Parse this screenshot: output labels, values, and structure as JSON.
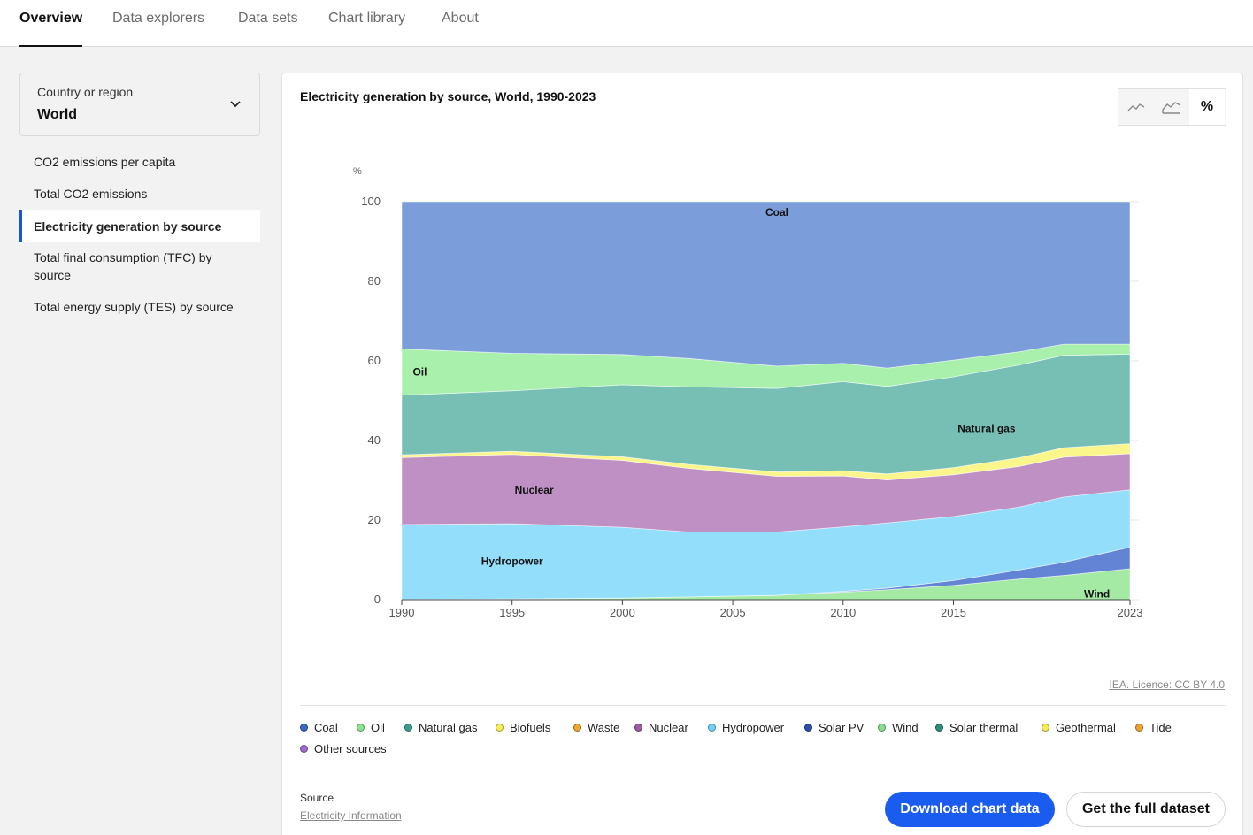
{
  "nav": {
    "tabs": [
      "Overview",
      "Data explorers",
      "Data sets",
      "Chart library",
      "About"
    ],
    "active": "Overview"
  },
  "selector": {
    "label": "Country or region",
    "value": "World"
  },
  "sidebar": {
    "items": [
      "CO2 emissions per capita",
      "Total CO2 emissions",
      "Electricity generation by source",
      "Total final consumption (TFC) by source",
      "Total energy supply (TES) by source"
    ],
    "active": "Electricity generation by source"
  },
  "chart": {
    "title": "Electricity generation by source, World, 1990-2023",
    "toggle_percent_label": "%",
    "licence": "IEA. Licence: CC BY 4.0",
    "source_label": "Source",
    "source_link": "Electricity Information",
    "download_label": "Download chart data",
    "dataset_label": "Get the full dataset",
    "legend": [
      {
        "name": "Coal",
        "color": "#3d68c2"
      },
      {
        "name": "Oil",
        "color": "#8ae38e"
      },
      {
        "name": "Natural gas",
        "color": "#3a9e8f"
      },
      {
        "name": "Biofuels",
        "color": "#f5ee5b"
      },
      {
        "name": "Waste",
        "color": "#f0a531"
      },
      {
        "name": "Nuclear",
        "color": "#a15aa5"
      },
      {
        "name": "Hydropower",
        "color": "#6dd4f7"
      },
      {
        "name": "Solar PV",
        "color": "#2d4eb0"
      },
      {
        "name": "Wind",
        "color": "#85e08a"
      },
      {
        "name": "Solar thermal",
        "color": "#2f8c7a"
      },
      {
        "name": "Geothermal",
        "color": "#f2ec55"
      },
      {
        "name": "Tide",
        "color": "#eba033"
      },
      {
        "name": "Other sources",
        "color": "#9b6fd1"
      }
    ]
  },
  "chart_data": {
    "type": "area",
    "ylabel": "%",
    "ylim": [
      0,
      100
    ],
    "yticks": [
      0,
      20,
      40,
      60,
      80,
      100
    ],
    "xticks": [
      1990,
      1995,
      2000,
      2005,
      2010,
      2015,
      2023
    ],
    "x": [
      1990,
      1995,
      2000,
      2003,
      2007,
      2010,
      2012,
      2015,
      2018,
      2020,
      2023
    ],
    "series": [
      {
        "name": "Wind",
        "values": [
          0.1,
          0.2,
          0.4,
          0.7,
          1.1,
          1.9,
          2.5,
          3.6,
          5.2,
          6.1,
          7.8
        ]
      },
      {
        "name": "Solar PV",
        "values": [
          0.0,
          0.0,
          0.0,
          0.0,
          0.0,
          0.2,
          0.4,
          1.2,
          2.3,
          3.3,
          5.4
        ]
      },
      {
        "name": "Hydropower",
        "values": [
          18.8,
          18.9,
          17.8,
          16.3,
          15.9,
          16.2,
          16.4,
          16.1,
          15.8,
          16.4,
          14.4
        ]
      },
      {
        "name": "Nuclear",
        "values": [
          16.8,
          17.4,
          16.8,
          16.0,
          14.0,
          12.8,
          10.8,
          10.5,
          10.2,
          10.0,
          9.1
        ]
      },
      {
        "name": "Biofuels",
        "values": [
          0.7,
          0.8,
          0.9,
          1.0,
          1.1,
          1.3,
          1.5,
          1.8,
          2.2,
          2.4,
          2.5
        ]
      },
      {
        "name": "Natural gas",
        "values": [
          15.0,
          15.2,
          18.1,
          19.5,
          21.0,
          22.4,
          22.0,
          22.8,
          23.3,
          23.2,
          22.5
        ]
      },
      {
        "name": "Oil",
        "values": [
          11.6,
          9.4,
          7.6,
          7.1,
          5.6,
          4.6,
          4.6,
          4.2,
          3.3,
          2.8,
          2.5
        ]
      },
      {
        "name": "Coal",
        "values": [
          37.0,
          38.1,
          38.4,
          39.4,
          41.3,
          40.6,
          41.8,
          39.8,
          37.7,
          35.8,
          35.8
        ]
      }
    ],
    "labels": [
      "Coal",
      "Oil",
      "Natural gas",
      "Nuclear",
      "Hydropower",
      "Wind"
    ]
  }
}
